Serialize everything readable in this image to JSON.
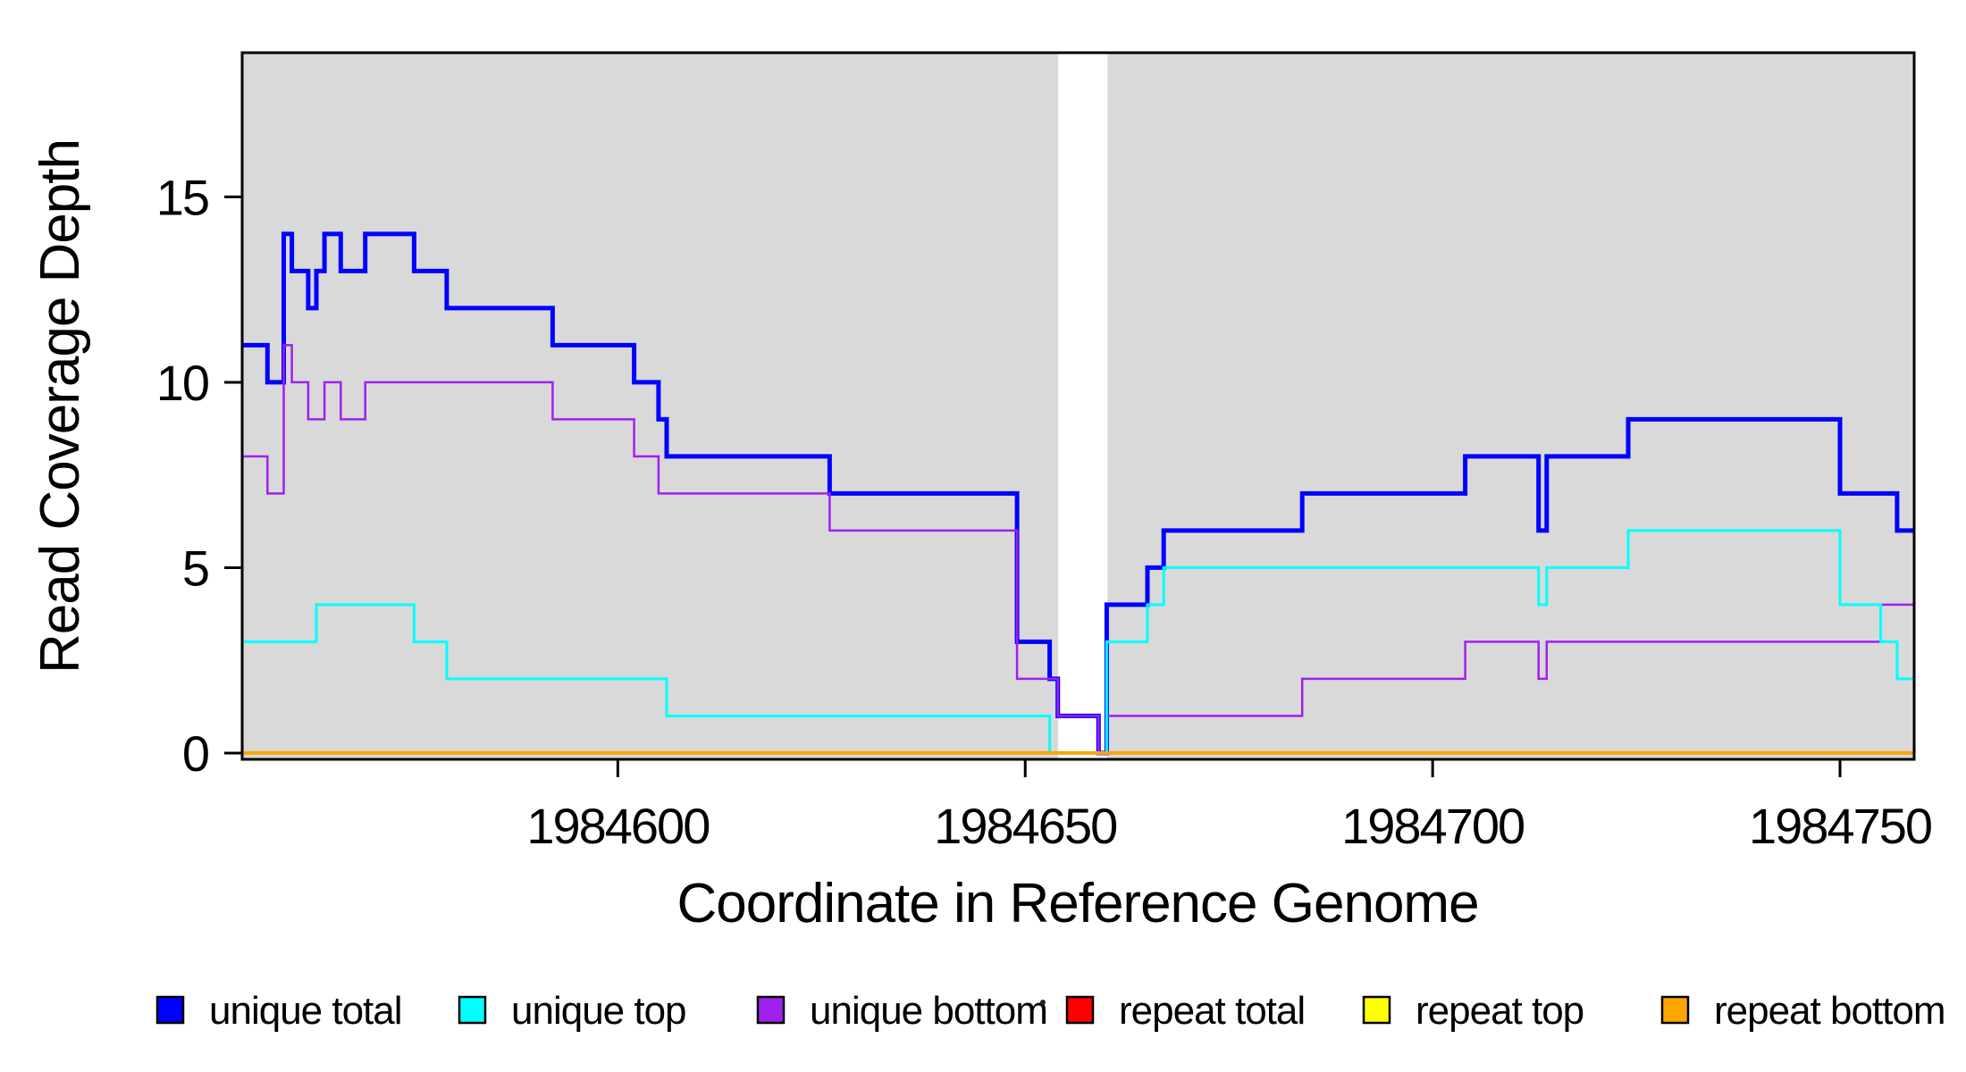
{
  "page": {
    "background": "#ffffff"
  },
  "chart_data": {
    "type": "line",
    "subtype": "step",
    "title": "",
    "xlabel": "Coordinate in Reference Genome",
    "ylabel": "Read Coverage Depth",
    "xlim": [
      1984553.9,
      1984759.1
    ],
    "ylim": [
      -0.17,
      18.89
    ],
    "grid": false,
    "plot_background": "#d9d9d9",
    "frame_color": "#000000",
    "xticks": {
      "values": [
        1984600,
        1984650,
        1984700,
        1984750
      ],
      "labels": [
        "1984600",
        "1984650",
        "1984700",
        "1984750"
      ]
    },
    "yticks": {
      "values": [
        0,
        5,
        10,
        15
      ],
      "labels": [
        "0",
        "5",
        "10",
        "15"
      ]
    },
    "coverage_gap": {
      "x_start": 1984654.05,
      "x_end": 1984660.1,
      "fill": "#ffffff"
    },
    "series": [
      {
        "name": "repeat total",
        "color": "#ff0000",
        "line_width": 3,
        "points": [
          [
            1984553.9,
            0
          ]
        ]
      },
      {
        "name": "repeat top",
        "color": "#ffff00",
        "line_width": 3,
        "points": [
          [
            1984553.9,
            0
          ]
        ]
      },
      {
        "name": "unique total",
        "color": "#0000ff",
        "line_width": 5,
        "points": [
          [
            1984553.9,
            11
          ],
          [
            1984557,
            10
          ],
          [
            1984559,
            14
          ],
          [
            1984560,
            13
          ],
          [
            1984562,
            12
          ],
          [
            1984563,
            13
          ],
          [
            1984564,
            14
          ],
          [
            1984566,
            13
          ],
          [
            1984569,
            14
          ],
          [
            1984575,
            13
          ],
          [
            1984579,
            12
          ],
          [
            1984592,
            11
          ],
          [
            1984602,
            10
          ],
          [
            1984605,
            9
          ],
          [
            1984606,
            8
          ],
          [
            1984626,
            7
          ],
          [
            1984649,
            3
          ],
          [
            1984653,
            2
          ],
          [
            1984654,
            1
          ],
          [
            1984659,
            0
          ],
          [
            1984660,
            4
          ],
          [
            1984665,
            5
          ],
          [
            1984667,
            6
          ],
          [
            1984684,
            7
          ],
          [
            1984704,
            8
          ],
          [
            1984713,
            6
          ],
          [
            1984714,
            8
          ],
          [
            1984724,
            9
          ],
          [
            1984750,
            7
          ],
          [
            1984757,
            6
          ]
        ]
      },
      {
        "name": "unique bottom",
        "color": "#a020f0",
        "line_width": 2.5,
        "points": [
          [
            1984553.9,
            8
          ],
          [
            1984557,
            7
          ],
          [
            1984559,
            11
          ],
          [
            1984560,
            10
          ],
          [
            1984562,
            9
          ],
          [
            1984564,
            10
          ],
          [
            1984566,
            9
          ],
          [
            1984569,
            10
          ],
          [
            1984592,
            9
          ],
          [
            1984602,
            8
          ],
          [
            1984605,
            7
          ],
          [
            1984626,
            6
          ],
          [
            1984649,
            2
          ],
          [
            1984654,
            1
          ],
          [
            1984659,
            0
          ],
          [
            1984660,
            1
          ],
          [
            1984684,
            2
          ],
          [
            1984704,
            3
          ],
          [
            1984713,
            2
          ],
          [
            1984714,
            3
          ],
          [
            1984755,
            4
          ]
        ]
      },
      {
        "name": "unique top",
        "color": "#00ffff",
        "line_width": 3,
        "points": [
          [
            1984553.9,
            3
          ],
          [
            1984563,
            4
          ],
          [
            1984575,
            3
          ],
          [
            1984579,
            2
          ],
          [
            1984606,
            1
          ],
          [
            1984653,
            0
          ],
          [
            1984660,
            3
          ],
          [
            1984665,
            4
          ],
          [
            1984667,
            5
          ],
          [
            1984713,
            4
          ],
          [
            1984714,
            5
          ],
          [
            1984724,
            6
          ],
          [
            1984750,
            4
          ],
          [
            1984755,
            3
          ],
          [
            1984757,
            2
          ]
        ]
      },
      {
        "name": "repeat bottom",
        "color": "#ffa500",
        "line_width": 4,
        "points": [
          [
            1984553.9,
            0
          ]
        ]
      }
    ],
    "legend": {
      "position": "bottom",
      "items": [
        {
          "label": "unique total",
          "color": "#0000ff"
        },
        {
          "label": "unique top",
          "color": "#00ffff"
        },
        {
          "label": "unique bottom",
          "color": "#a020f0"
        },
        {
          "label": "repeat total",
          "color": "#ff0000"
        },
        {
          "label": "repeat top",
          "color": "#ffff00"
        },
        {
          "label": "repeat bottom",
          "color": "#ffa500"
        }
      ]
    }
  }
}
